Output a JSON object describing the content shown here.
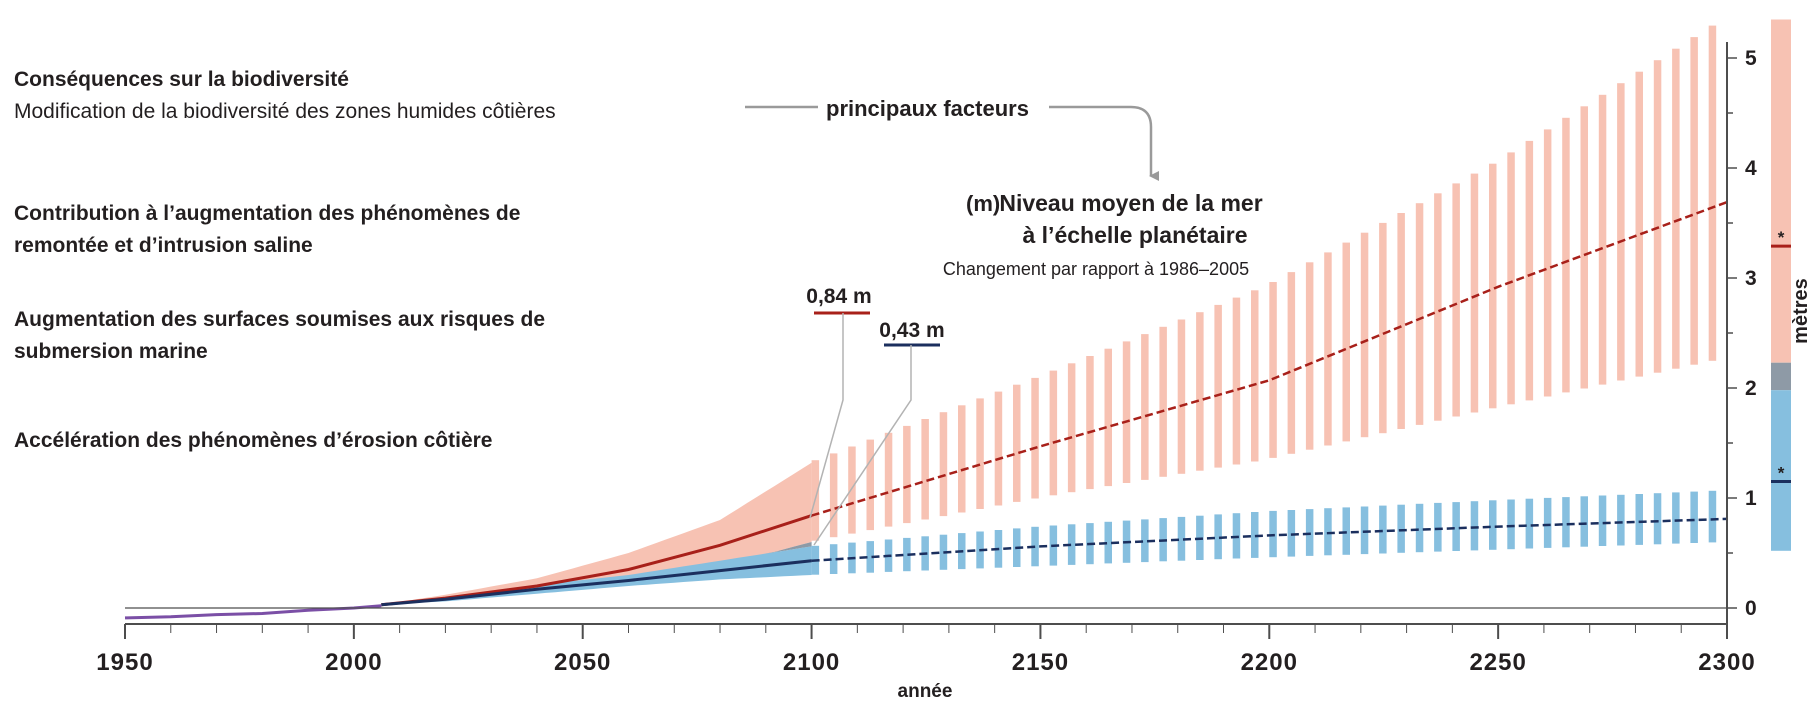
{
  "impacts": [
    {
      "title": "Conséquences sur la biodiversité",
      "text": "Modification de la biodiversité des zones humides côtières"
    },
    {
      "title": "Contribution à l’augmentation des phénomènes de remontée et d’intrusion saline",
      "text": ""
    },
    {
      "title": "Augmentation des surfaces soumises aux risques de submersion marine",
      "text": ""
    },
    {
      "title": "Accélération des phénomènes d’érosion côtière",
      "text": ""
    }
  ],
  "annotations": {
    "factors_label": "principaux facteurs",
    "unit_tag": "(m)",
    "title_line1": "Niveau moyen de la mer",
    "title_line2": "à l’échelle planétaire",
    "subtitle": "Changement par rapport à 1986–2005",
    "label_high": "0,84 m",
    "label_low": "0,43 m",
    "bar_marker_high": "*",
    "bar_marker_low": "*"
  },
  "colors": {
    "high_scenario_line": "#a8201a",
    "high_scenario_range": "#f7c2b3",
    "low_scenario_line": "#1b2f5e",
    "low_scenario_range": "#86bfdf",
    "overlap_range": "#8e9aa6",
    "historical_line": "#7b4fa6",
    "axis": "#4d4d4d",
    "text": "#231f20"
  },
  "chart_data": {
    "type": "area",
    "xlabel": "année",
    "ylabel": "mètres",
    "xlim": [
      1950,
      2300
    ],
    "ylim": [
      -0.1,
      5.4
    ],
    "x_ticks": [
      1950,
      2000,
      2050,
      2100,
      2150,
      2200,
      2250,
      2300
    ],
    "y_ticks": [
      0,
      1,
      2,
      3,
      4,
      5
    ],
    "grid": false,
    "historical": {
      "x": [
        1950,
        1960,
        1970,
        1980,
        1990,
        2000,
        2006
      ],
      "y": [
        -0.09,
        -0.08,
        -0.06,
        -0.05,
        -0.02,
        0.0,
        0.02
      ]
    },
    "series": [
      {
        "x": [
          2006,
          2020,
          2040,
          2060,
          2080,
          2100,
          2150,
          2200,
          2250,
          2300
        ],
        "y": [
          0.03,
          0.09,
          0.2,
          0.35,
          0.57,
          0.84,
          1.47,
          2.07,
          2.92,
          3.69
        ],
        "low": [
          0.03,
          0.07,
          0.15,
          0.25,
          0.38,
          0.6,
          1.0,
          1.35,
          1.82,
          2.27
        ],
        "high": [
          0.03,
          0.12,
          0.27,
          0.5,
          0.8,
          1.32,
          2.1,
          2.93,
          4.05,
          5.36
        ]
      },
      {
        "x": [
          2006,
          2020,
          2040,
          2060,
          2080,
          2100,
          2150,
          2200,
          2250,
          2300
        ],
        "y": [
          0.03,
          0.08,
          0.17,
          0.25,
          0.34,
          0.43,
          0.56,
          0.66,
          0.74,
          0.81
        ],
        "low": [
          0.03,
          0.06,
          0.13,
          0.2,
          0.26,
          0.3,
          0.38,
          0.46,
          0.53,
          0.6
        ],
        "high": [
          0.03,
          0.1,
          0.21,
          0.3,
          0.43,
          0.56,
          0.74,
          0.88,
          0.98,
          1.07
        ]
      }
    ],
    "right_bar": {
      "high": {
        "low": 2.23,
        "high": 5.35,
        "median": 3.29
      },
      "overlap": {
        "low": 1.98,
        "high": 2.23
      },
      "low": {
        "low": 0.52,
        "high": 1.98,
        "median": 1.15
      }
    }
  }
}
